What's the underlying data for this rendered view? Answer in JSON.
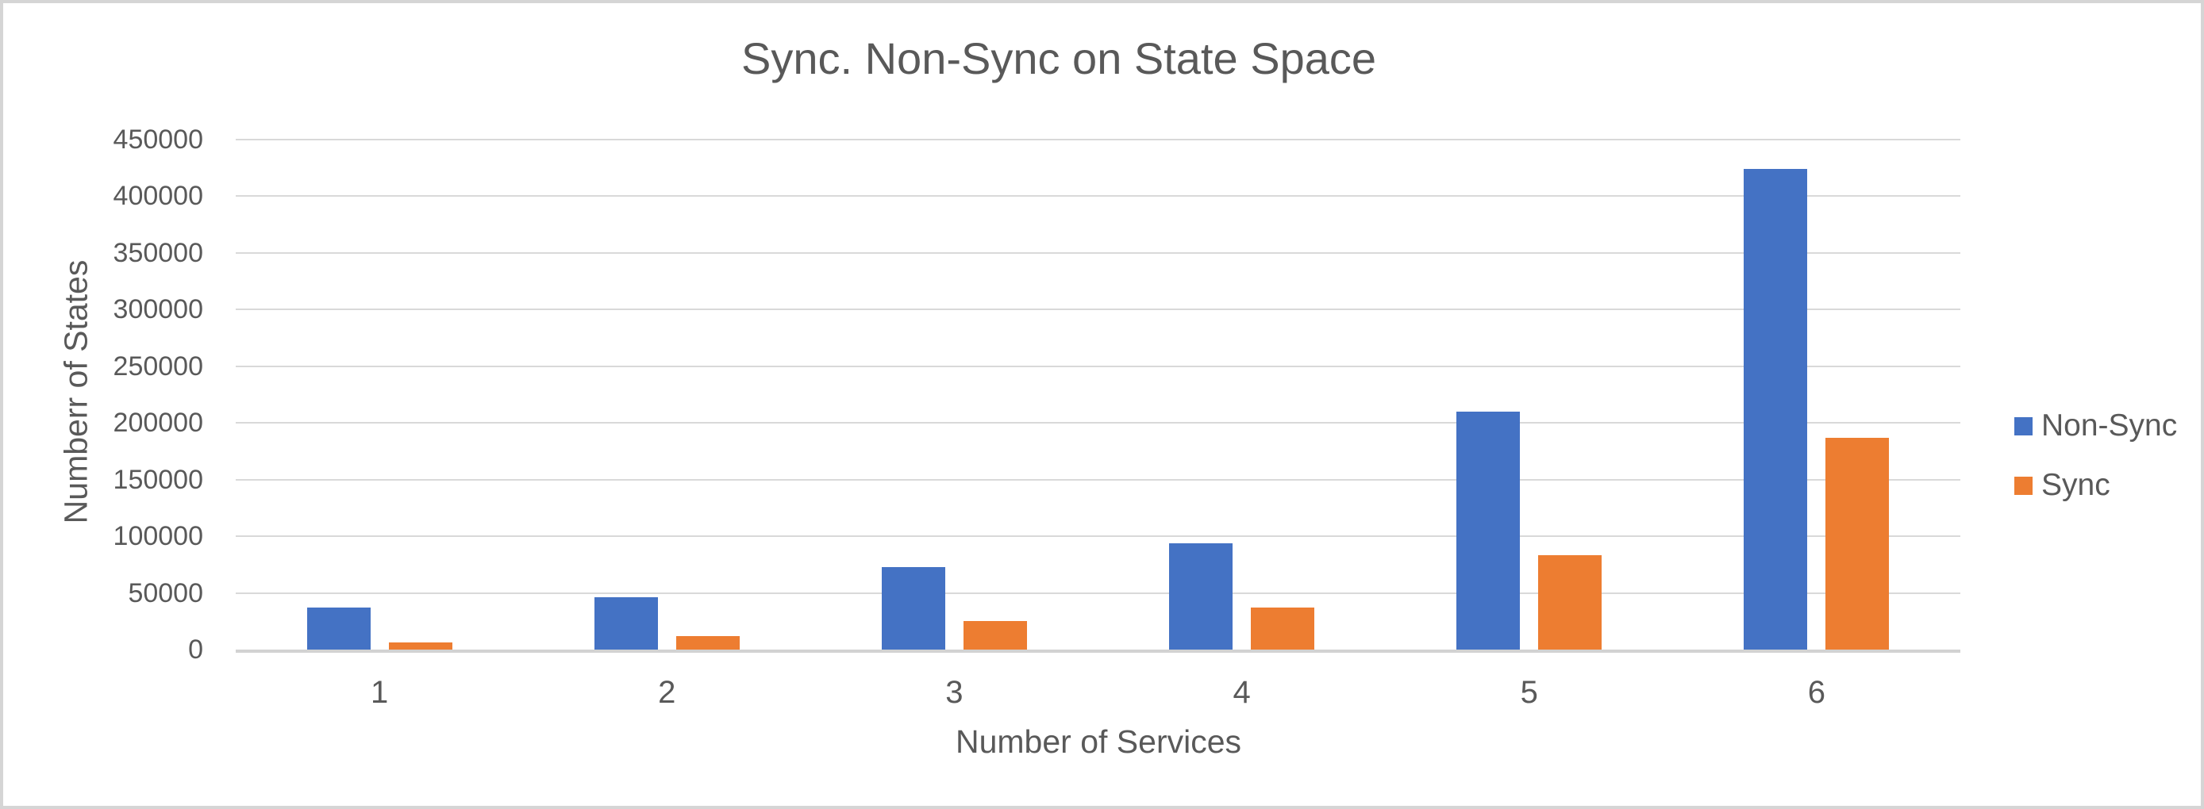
{
  "chart_data": {
    "type": "bar",
    "title": "Sync. Non-Sync on State Space",
    "xlabel": "Number of Services",
    "ylabel": "Numberr of States",
    "categories": [
      "1",
      "2",
      "3",
      "4",
      "5",
      "6"
    ],
    "series": [
      {
        "name": "Non-Sync",
        "color": "#4472C4",
        "values": [
          37000,
          46000,
          73000,
          94000,
          210000,
          424000
        ]
      },
      {
        "name": "Sync",
        "color": "#ED7D31",
        "values": [
          6000,
          12000,
          25000,
          37000,
          83000,
          187000
        ]
      }
    ],
    "ylim": [
      0,
      450000
    ],
    "ytick_step": 50000,
    "yticks": [
      "0",
      "50000",
      "100000",
      "150000",
      "200000",
      "250000",
      "300000",
      "350000",
      "400000",
      "450000"
    ],
    "grid": true,
    "legend_position": "right",
    "colors": {
      "text": "#595959",
      "gridline": "#d9d9d9",
      "axis_line": "#d2d2d2",
      "frame_border": "#d5d5d5",
      "background": "#ffffff"
    }
  }
}
